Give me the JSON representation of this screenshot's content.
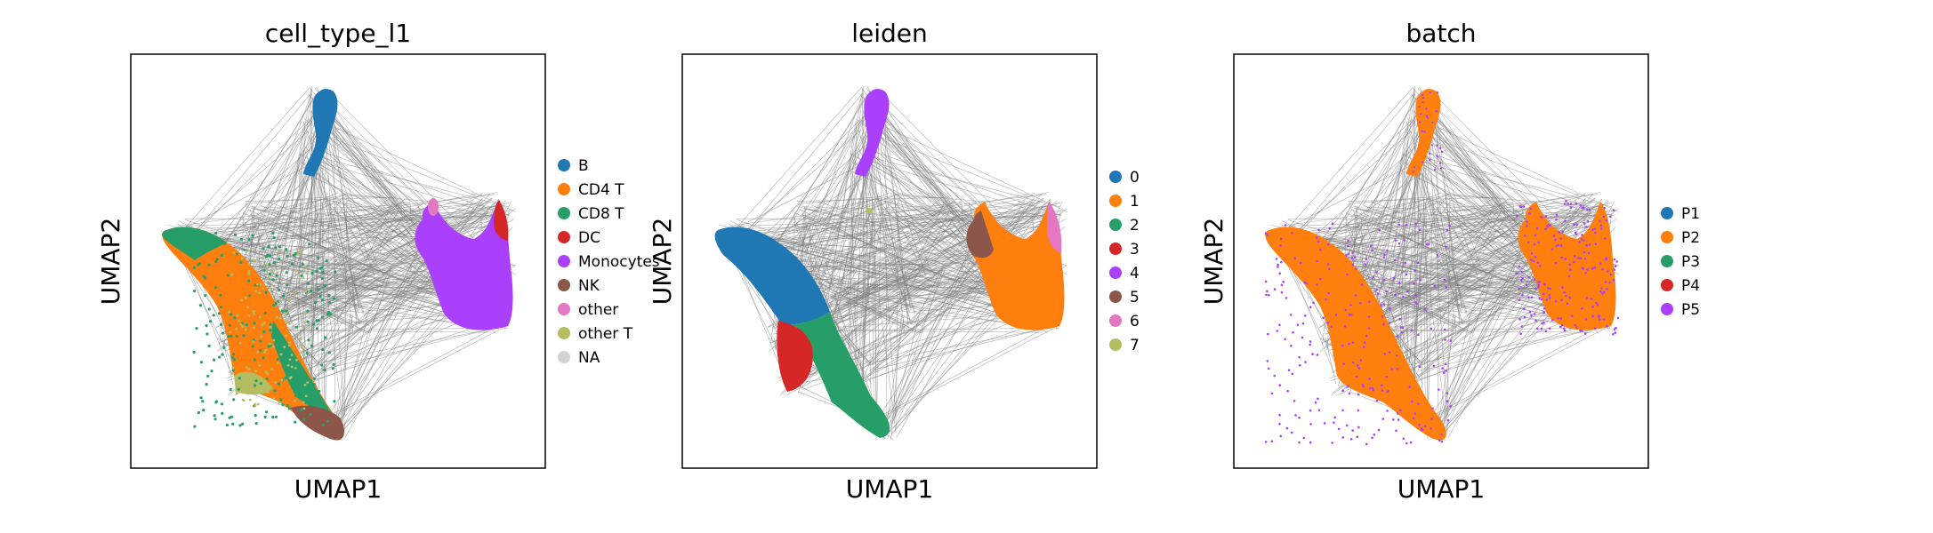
{
  "chart_data": [
    {
      "type": "scatter",
      "title": "cell_type_l1",
      "xlabel": "UMAP1",
      "ylabel": "UMAP2",
      "grid": false,
      "legend_position": "right",
      "legend": [
        {
          "label": "B",
          "color": "#1f77b4"
        },
        {
          "label": "CD4 T",
          "color": "#ff7f0e"
        },
        {
          "label": "CD8 T",
          "color": "#279e68"
        },
        {
          "label": "DC",
          "color": "#d62728"
        },
        {
          "label": "Monocytes",
          "color": "#aa40fc"
        },
        {
          "label": "NK",
          "color": "#8c564b"
        },
        {
          "label": "other",
          "color": "#e377c2"
        },
        {
          "label": "other T",
          "color": "#b5bd61"
        },
        {
          "label": "NA",
          "color": "#d3d3d3"
        }
      ]
    },
    {
      "type": "scatter",
      "title": "leiden",
      "xlabel": "UMAP1",
      "ylabel": "UMAP2",
      "grid": false,
      "legend_position": "right",
      "legend": [
        {
          "label": "0",
          "color": "#1f77b4"
        },
        {
          "label": "1",
          "color": "#ff7f0e"
        },
        {
          "label": "2",
          "color": "#279e68"
        },
        {
          "label": "3",
          "color": "#d62728"
        },
        {
          "label": "4",
          "color": "#aa40fc"
        },
        {
          "label": "5",
          "color": "#8c564b"
        },
        {
          "label": "6",
          "color": "#e377c2"
        },
        {
          "label": "7",
          "color": "#b5bd61"
        }
      ]
    },
    {
      "type": "scatter",
      "title": "batch",
      "xlabel": "UMAP1",
      "ylabel": "UMAP2",
      "grid": false,
      "legend_position": "right",
      "legend": [
        {
          "label": "P1",
          "color": "#1f77b4"
        },
        {
          "label": "P2",
          "color": "#ff7f0e"
        },
        {
          "label": "P3",
          "color": "#279e68"
        },
        {
          "label": "P4",
          "color": "#d62728"
        },
        {
          "label": "P5",
          "color": "#aa40fc"
        }
      ]
    }
  ],
  "colors": {
    "edge": "#808080",
    "frame": "#000000",
    "background": "#ffffff"
  }
}
